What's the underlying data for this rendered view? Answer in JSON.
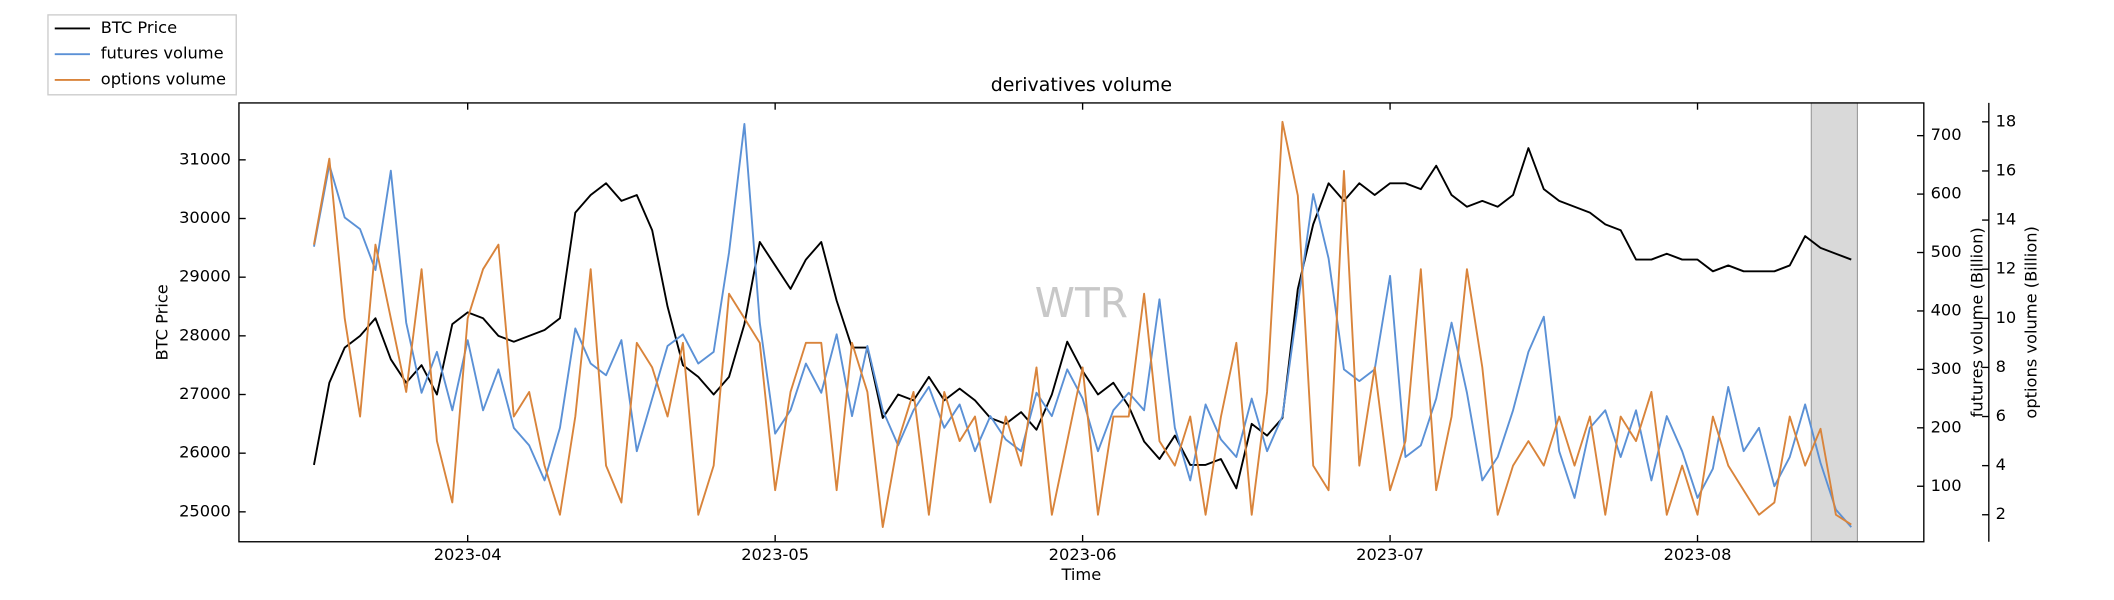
{
  "chart_data": {
    "type": "line",
    "title": "derivatives volume",
    "xlabel": "Time",
    "ylabel": "BTC Price",
    "y2label": "futures volume (Billion)",
    "y3label": "options volume (Billion)",
    "watermark": "WTR",
    "legend": "upper left",
    "shaded_span": [
      4.37,
      4.52
    ],
    "xlim": [
      -0.744,
      4.736
    ],
    "xticks": [
      {
        "value": 0,
        "label": "2023-04"
      },
      {
        "value": 1,
        "label": "2023-05"
      },
      {
        "value": 2,
        "label": "2023-06"
      },
      {
        "value": 3,
        "label": "2023-07"
      },
      {
        "value": 4,
        "label": "2023-08"
      }
    ],
    "ylim": [
      24490,
      31970
    ],
    "yticks": [
      25000,
      26000,
      27000,
      28000,
      29000,
      30000,
      31000
    ],
    "y2lim": [
      5,
      756
    ],
    "y2ticks": [
      100,
      200,
      300,
      400,
      500,
      600,
      700
    ],
    "y3lim": [
      0.9,
      18.77
    ],
    "y3ticks": [
      2,
      4,
      6,
      8,
      10,
      12,
      14,
      16,
      18
    ],
    "x": [
      -0.5,
      -0.45,
      -0.4,
      -0.35,
      -0.3,
      -0.25,
      -0.2,
      -0.15,
      -0.1,
      -0.05,
      0,
      0.05,
      0.1,
      0.15,
      0.2,
      0.25,
      0.3,
      0.35,
      0.4,
      0.45,
      0.5,
      0.55,
      0.6,
      0.65,
      0.7,
      0.75,
      0.8,
      0.85,
      0.9,
      0.95,
      1,
      1.05,
      1.1,
      1.15,
      1.2,
      1.25,
      1.3,
      1.35,
      1.4,
      1.45,
      1.5,
      1.55,
      1.6,
      1.65,
      1.7,
      1.75,
      1.8,
      1.85,
      1.9,
      1.95,
      2,
      2.05,
      2.1,
      2.15,
      2.2,
      2.25,
      2.3,
      2.35,
      2.4,
      2.45,
      2.5,
      2.55,
      2.6,
      2.65,
      2.7,
      2.75,
      2.8,
      2.85,
      2.9,
      2.95,
      3,
      3.05,
      3.1,
      3.15,
      3.2,
      3.25,
      3.3,
      3.35,
      3.4,
      3.45,
      3.5,
      3.55,
      3.6,
      3.65,
      3.7,
      3.75,
      3.8,
      3.85,
      3.9,
      3.95,
      4,
      4.05,
      4.1,
      4.15,
      4.2,
      4.25,
      4.3,
      4.35,
      4.4,
      4.45,
      4.5
    ],
    "series": [
      {
        "name": "BTC Price",
        "color": "#000000",
        "axis": "y",
        "values": [
          25800,
          27200,
          27800,
          28000,
          28300,
          27600,
          27200,
          27500,
          27000,
          28200,
          28400,
          28300,
          28000,
          27900,
          28000,
          28100,
          28300,
          30100,
          30400,
          30600,
          30300,
          30400,
          29800,
          28500,
          27500,
          27300,
          27000,
          27300,
          28200,
          29600,
          29200,
          28800,
          29300,
          29600,
          28600,
          27800,
          27800,
          26600,
          27000,
          26900,
          27300,
          26900,
          27100,
          26900,
          26600,
          26500,
          26700,
          26400,
          27000,
          27900,
          27400,
          27000,
          27200,
          26800,
          26200,
          25900,
          26300,
          25800,
          25800,
          25900,
          25400,
          26500,
          26300,
          26600,
          28800,
          29900,
          30600,
          30300,
          30600,
          30400,
          30600,
          30600,
          30500,
          30900,
          30400,
          30200,
          30300,
          30200,
          30400,
          31200,
          30500,
          30300,
          30200,
          30100,
          29900,
          29800,
          29300,
          29300,
          29400,
          29300,
          29300,
          29100,
          29200,
          29100,
          29100,
          29100,
          29200,
          29700,
          29500,
          29400,
          29300
        ]
      },
      {
        "name": "futures volume",
        "color": "#5b91d6",
        "axis": "y2",
        "values": [
          510,
          650,
          560,
          540,
          470,
          640,
          380,
          260,
          330,
          230,
          350,
          230,
          300,
          200,
          170,
          110,
          200,
          370,
          310,
          290,
          350,
          160,
          250,
          340,
          360,
          310,
          330,
          500,
          720,
          380,
          190,
          230,
          310,
          260,
          360,
          220,
          340,
          230,
          170,
          230,
          270,
          200,
          240,
          160,
          220,
          180,
          160,
          260,
          220,
          300,
          250,
          160,
          230,
          260,
          230,
          420,
          200,
          110,
          240,
          180,
          150,
          250,
          160,
          220,
          410,
          600,
          490,
          300,
          280,
          300,
          460,
          150,
          170,
          250,
          380,
          260,
          110,
          150,
          230,
          330,
          390,
          160,
          80,
          200,
          230,
          150,
          230,
          110,
          220,
          160,
          80,
          130,
          270,
          160,
          200,
          100,
          150,
          240,
          140,
          60,
          30
        ]
      },
      {
        "name": "options volume",
        "color": "#d9843b",
        "axis": "y3",
        "values": [
          13,
          16.5,
          10,
          6,
          13,
          10,
          7,
          12,
          5,
          2.5,
          10,
          12,
          13,
          6,
          7,
          4,
          2,
          6,
          12,
          4,
          2.5,
          9,
          8,
          6,
          9,
          2,
          4,
          11,
          10,
          9,
          3,
          7,
          9,
          9,
          3,
          9,
          7,
          1.5,
          5,
          7,
          2,
          7,
          5,
          6,
          2.5,
          6,
          4,
          8,
          2,
          5,
          8,
          2,
          6,
          6,
          11,
          5,
          4,
          6,
          2,
          6,
          9,
          2,
          7,
          18,
          15,
          4,
          3,
          16,
          4,
          8,
          3,
          5,
          12,
          3,
          6,
          12,
          8,
          2,
          4,
          5,
          4,
          6,
          4,
          6,
          2,
          6,
          5,
          7,
          2,
          4,
          2,
          6,
          4,
          3,
          2,
          2.5,
          6,
          4,
          5.5,
          2,
          1.6
        ]
      }
    ]
  }
}
